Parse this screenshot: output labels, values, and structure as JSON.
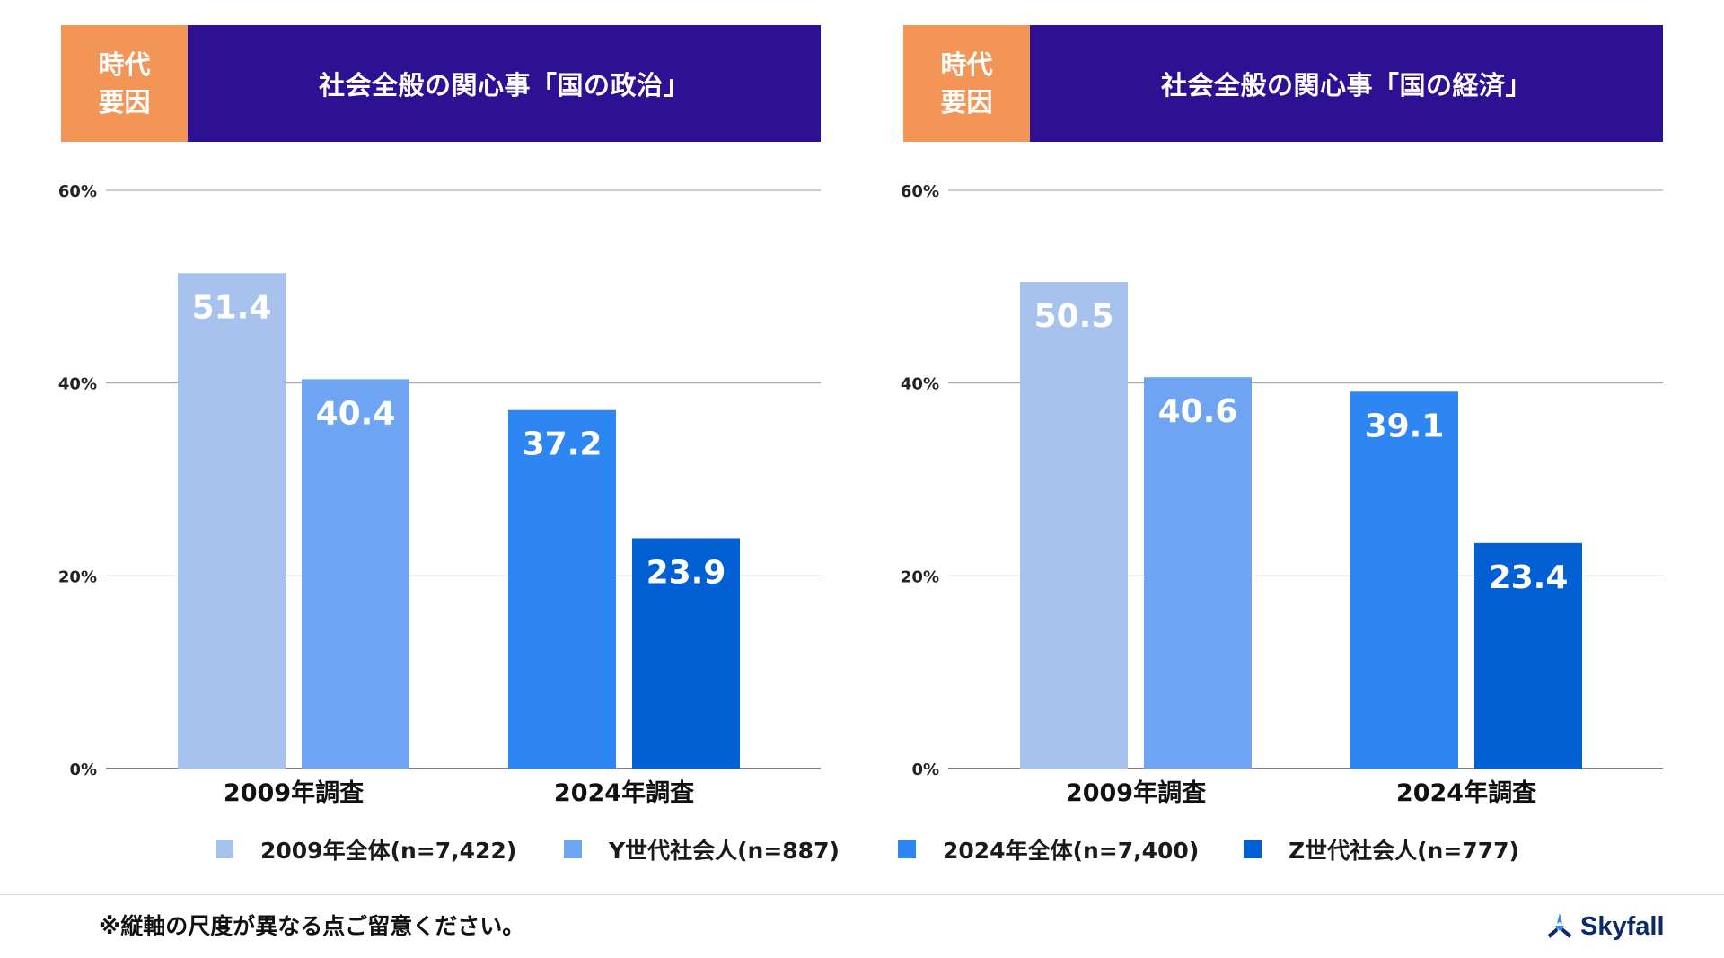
{
  "chart_data": [
    {
      "type": "bar",
      "header_tag": [
        "時代",
        "要因"
      ],
      "title": "社会全般の関心事「国の政治」",
      "categories": [
        "2009年調査",
        "2024年調査"
      ],
      "series": [
        {
          "name": "2009年全体(n=7,422)",
          "color": "#A7C2EC",
          "values": [
            51.4,
            null
          ]
        },
        {
          "name": "Y世代社会人(n=887)",
          "color": "#6EA4F1",
          "values": [
            40.4,
            null
          ]
        },
        {
          "name": "2024年全体(n=7,400)",
          "color": "#2D86F2",
          "values": [
            null,
            37.2
          ]
        },
        {
          "name": "Z世代社会人(n=777)",
          "color": "#005FD3",
          "values": [
            null,
            23.9
          ]
        }
      ],
      "ylim": [
        0,
        60
      ],
      "yticks": [
        "0%",
        "20%",
        "40%",
        "60%"
      ],
      "grid": true,
      "xlabel": "",
      "ylabel": ""
    },
    {
      "type": "bar",
      "header_tag": [
        "時代",
        "要因"
      ],
      "title": "社会全般の関心事「国の経済」",
      "categories": [
        "2009年調査",
        "2024年調査"
      ],
      "series": [
        {
          "name": "2009年全体(n=7,422)",
          "color": "#A7C2EC",
          "values": [
            50.5,
            null
          ]
        },
        {
          "name": "Y世代社会人(n=887)",
          "color": "#6EA4F1",
          "values": [
            40.6,
            null
          ]
        },
        {
          "name": "2024年全体(n=7,400)",
          "color": "#2D86F2",
          "values": [
            null,
            39.1
          ]
        },
        {
          "name": "Z世代社会人(n=777)",
          "color": "#005FD3",
          "values": [
            null,
            23.4
          ]
        }
      ],
      "ylim": [
        0,
        60
      ],
      "yticks": [
        "0%",
        "20%",
        "40%",
        "60%"
      ],
      "grid": true,
      "xlabel": "",
      "ylabel": ""
    }
  ],
  "legend": [
    {
      "label": "2009年全体(n=7,422)",
      "color": "#A7C2EC"
    },
    {
      "label": "Y世代社会人(n=887)",
      "color": "#6EA4F1"
    },
    {
      "label": "2024年全体(n=7,400)",
      "color": "#2D86F2"
    },
    {
      "label": "Z世代社会人(n=777)",
      "color": "#005FD3"
    }
  ],
  "footer": {
    "note": "※縦軸の尺度が異なる点ご留意ください。",
    "logo_text": "Skyfall",
    "logo_icon": "skyfall-logo-icon"
  },
  "colors": {
    "header_tag_bg": "#F39556",
    "header_title_bg": "#2E1193",
    "grid": "#9a9a9a"
  }
}
